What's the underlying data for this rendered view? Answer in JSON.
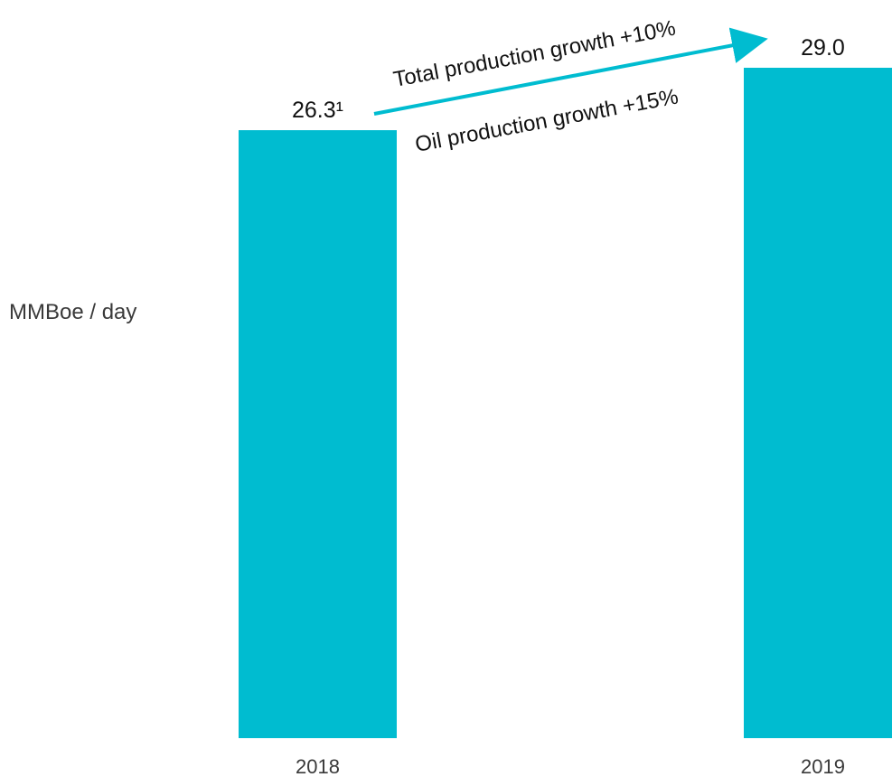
{
  "chart_data": {
    "type": "bar",
    "ylabel": "MMBoe / day",
    "categories": [
      "2018",
      "2019"
    ],
    "values": [
      26.3,
      29.0
    ],
    "data_labels": [
      "26.3¹",
      "29.0"
    ],
    "ylim": [
      0,
      29.0
    ],
    "grid": false,
    "legend": "none",
    "annotations": [
      {
        "text": "Total production growth +10%"
      },
      {
        "text": "Oil production growth +15%"
      }
    ],
    "colors": {
      "bar": "#00BCD0",
      "arrow": "#00BCD0"
    }
  }
}
